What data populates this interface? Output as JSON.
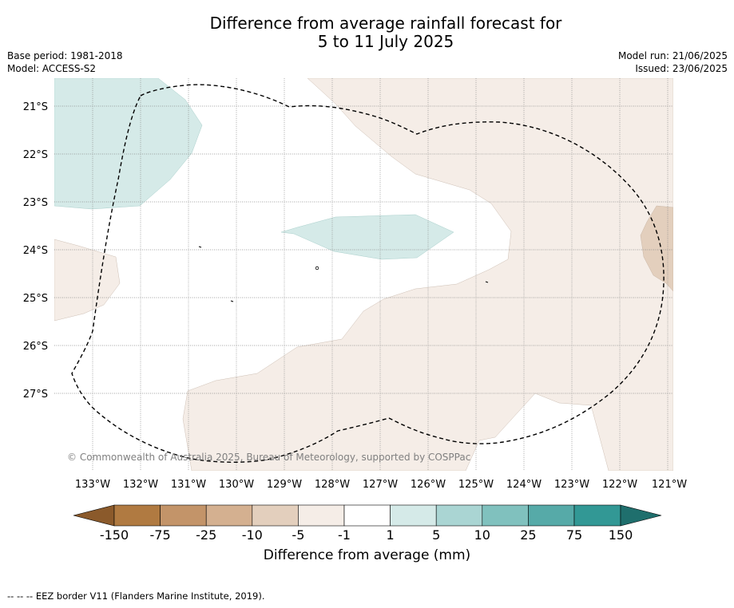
{
  "title": {
    "line1": "Difference from average rainfall forecast for",
    "line2": "5 to 11 July 2025"
  },
  "meta": {
    "base_period": "Base period: 1981-2018",
    "model": "Model: ACCESS-S2",
    "model_run": "Model run: 21/06/2025",
    "issued": "Issued: 23/06/2025"
  },
  "map": {
    "lat_labels": [
      "21°S",
      "22°S",
      "23°S",
      "24°S",
      "25°S",
      "26°S",
      "27°S"
    ],
    "lon_labels": [
      "133°W",
      "132°W",
      "131°W",
      "130°W",
      "129°W",
      "128°W",
      "127°W",
      "126°W",
      "125°W",
      "124°W",
      "123°W",
      "122°W",
      "121°W"
    ],
    "copyright": "© Commonwealth of Australia 2025, Bureau of Meteorology, supported by COSPPac",
    "colors": {
      "wet_light": "#d5eae8",
      "dry_light": "#f5ede7",
      "dry_medium": "#e3cfbd",
      "eez_line": "#000000",
      "grid": "#888888"
    }
  },
  "colorbar": {
    "ticks": [
      "-150",
      "-75",
      "-25",
      "-10",
      "-5",
      "-1",
      "1",
      "5",
      "10",
      "25",
      "75",
      "150"
    ],
    "colors": [
      "#8b5a2b",
      "#b07a41",
      "#c39469",
      "#d4b090",
      "#e3cfbd",
      "#f5ede7",
      "#ffffff",
      "#d5eae8",
      "#aad5d3",
      "#80c1be",
      "#56aaa8",
      "#329895",
      "#1f6f6d"
    ],
    "label": "Difference from average (mm)"
  },
  "footnote": "-- -- -- EEZ border V11 (Flanders Marine Institute, 2019)."
}
